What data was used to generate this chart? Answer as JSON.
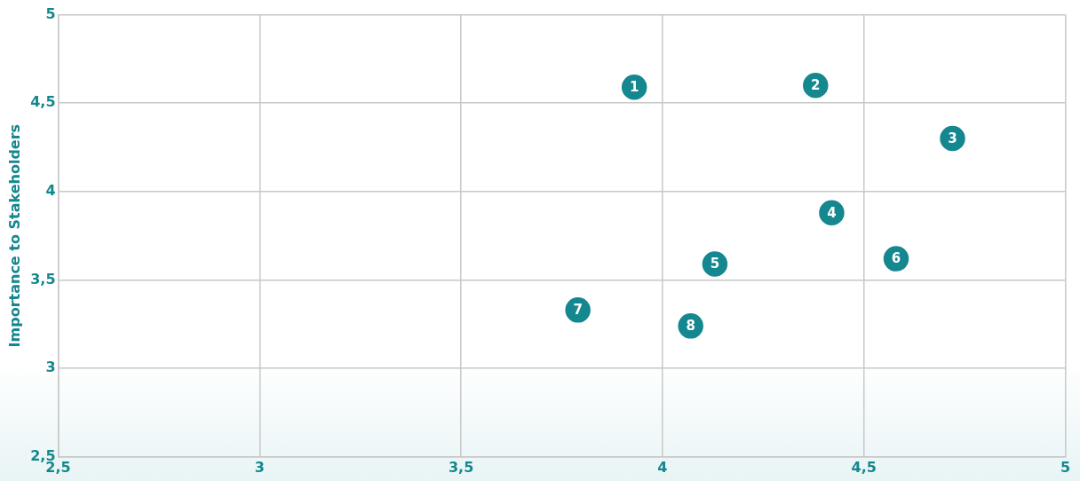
{
  "chart_data": {
    "type": "scatter",
    "ylabel": "Importance to Stakeholders",
    "series": [
      {
        "color": "#14878f",
        "x": [
          3.93,
          4.38,
          4.72,
          4.42,
          4.13,
          4.58,
          3.79,
          4.07
        ],
        "values": [
          4.59,
          4.6,
          4.3,
          3.88,
          3.59,
          3.62,
          3.33,
          3.24
        ]
      }
    ],
    "annotations": [
      {
        "text": "1",
        "x": 3.93,
        "y": 4.59
      },
      {
        "text": "2",
        "x": 4.38,
        "y": 4.6
      },
      {
        "text": "3",
        "x": 4.72,
        "y": 4.3
      },
      {
        "text": "4",
        "x": 4.42,
        "y": 3.88
      },
      {
        "text": "5",
        "x": 4.13,
        "y": 3.59
      },
      {
        "text": "6",
        "x": 4.58,
        "y": 3.62
      },
      {
        "text": "7",
        "x": 3.79,
        "y": 3.33
      },
      {
        "text": "8",
        "x": 4.07,
        "y": 3.24
      }
    ],
    "xlim": [
      2.5,
      5
    ],
    "ylim": [
      2.5,
      5
    ],
    "xticks": [
      {
        "value": 2.5,
        "label": "2,5"
      },
      3,
      {
        "value": 3.5,
        "label": "3,5"
      },
      4,
      {
        "value": 4.5,
        "label": "4,5"
      },
      5
    ],
    "yticks": [
      {
        "value": 2.5,
        "label": "2,5"
      },
      3,
      {
        "value": 3.5,
        "label": "3,5"
      },
      4,
      {
        "value": 4.5,
        "label": "4,5"
      },
      5
    ],
    "grid": true,
    "marker": "circle",
    "legend": false
  }
}
